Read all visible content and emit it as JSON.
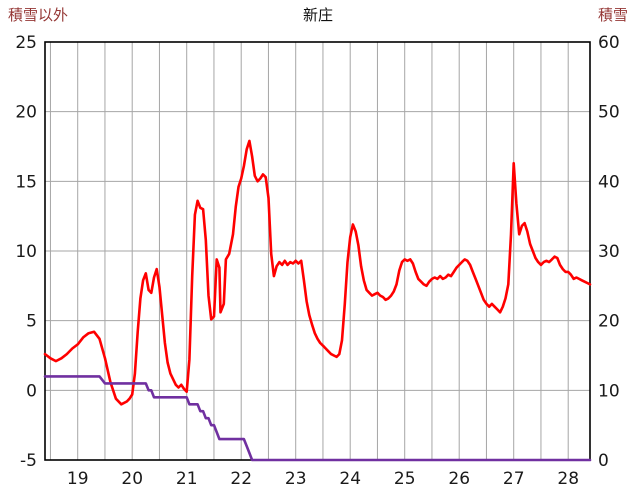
{
  "header": {
    "left_axis_title": "積雪以外",
    "title": "新庄",
    "right_axis_title": "積雪"
  },
  "colors": {
    "temp_line": "#ff0000",
    "snow_line": "#7030a0",
    "grid": "#a6a6a6",
    "border": "#000000",
    "tick_label": "#1a1a1a",
    "axis_title": "#953735",
    "background": "#ffffff"
  },
  "chart_data": {
    "type": "line",
    "title": "新庄",
    "x_axis": {
      "range": [
        18.4,
        28.4
      ],
      "gridline_step": 0.5,
      "tick_positions": [
        19,
        20,
        21,
        22,
        23,
        24,
        25,
        26,
        27,
        28
      ],
      "tick_labels": [
        "19",
        "20",
        "21",
        "22",
        "23",
        "24",
        "25",
        "26",
        "27",
        "28"
      ]
    },
    "y_left": {
      "label": "積雪以外",
      "range": [
        -5,
        25
      ],
      "ticks": [
        -5,
        0,
        5,
        10,
        15,
        20,
        25
      ],
      "tick_labels": [
        "-5",
        "0",
        "5",
        "10",
        "15",
        "20",
        "25"
      ]
    },
    "y_right": {
      "label": "積雪",
      "range": [
        0,
        60
      ],
      "ticks": [
        0,
        10,
        20,
        30,
        40,
        50,
        60
      ],
      "tick_labels": [
        "0",
        "10",
        "20",
        "30",
        "40",
        "50",
        "60"
      ]
    },
    "grid": true,
    "legend": "none",
    "series": [
      {
        "name": "積雪以外",
        "axis": "left",
        "color": "#ff0000",
        "points": [
          [
            18.4,
            2.6
          ],
          [
            18.5,
            2.3
          ],
          [
            18.6,
            2.1
          ],
          [
            18.7,
            2.3
          ],
          [
            18.8,
            2.6
          ],
          [
            18.9,
            3.0
          ],
          [
            19.0,
            3.3
          ],
          [
            19.1,
            3.8
          ],
          [
            19.2,
            4.1
          ],
          [
            19.3,
            4.2
          ],
          [
            19.4,
            3.7
          ],
          [
            19.5,
            2.3
          ],
          [
            19.6,
            0.6
          ],
          [
            19.7,
            -0.6
          ],
          [
            19.8,
            -1.0
          ],
          [
            19.9,
            -0.8
          ],
          [
            19.95,
            -0.6
          ],
          [
            20.0,
            -0.3
          ],
          [
            20.05,
            1.2
          ],
          [
            20.1,
            4.2
          ],
          [
            20.15,
            6.6
          ],
          [
            20.2,
            7.9
          ],
          [
            20.25,
            8.4
          ],
          [
            20.3,
            7.2
          ],
          [
            20.35,
            7.0
          ],
          [
            20.4,
            8.1
          ],
          [
            20.45,
            8.7
          ],
          [
            20.5,
            7.4
          ],
          [
            20.55,
            5.4
          ],
          [
            20.6,
            3.4
          ],
          [
            20.65,
            2.0
          ],
          [
            20.7,
            1.2
          ],
          [
            20.75,
            0.8
          ],
          [
            20.8,
            0.4
          ],
          [
            20.85,
            0.2
          ],
          [
            20.9,
            0.4
          ],
          [
            20.95,
            0.1
          ],
          [
            21.0,
            -0.1
          ],
          [
            21.05,
            2.2
          ],
          [
            21.1,
            8.2
          ],
          [
            21.15,
            12.6
          ],
          [
            21.2,
            13.6
          ],
          [
            21.25,
            13.1
          ],
          [
            21.3,
            13.0
          ],
          [
            21.35,
            10.8
          ],
          [
            21.4,
            6.8
          ],
          [
            21.45,
            5.1
          ],
          [
            21.5,
            5.3
          ],
          [
            21.55,
            9.4
          ],
          [
            21.6,
            8.8
          ],
          [
            21.62,
            5.6
          ],
          [
            21.68,
            6.2
          ],
          [
            21.72,
            9.4
          ],
          [
            21.78,
            9.8
          ],
          [
            21.85,
            11.2
          ],
          [
            21.9,
            13.2
          ],
          [
            21.95,
            14.6
          ],
          [
            22.0,
            15.2
          ],
          [
            22.05,
            16.1
          ],
          [
            22.1,
            17.3
          ],
          [
            22.15,
            17.9
          ],
          [
            22.2,
            16.8
          ],
          [
            22.25,
            15.4
          ],
          [
            22.3,
            15.0
          ],
          [
            22.35,
            15.2
          ],
          [
            22.4,
            15.5
          ],
          [
            22.45,
            15.3
          ],
          [
            22.5,
            13.8
          ],
          [
            22.55,
            9.8
          ],
          [
            22.6,
            8.2
          ],
          [
            22.65,
            8.9
          ],
          [
            22.7,
            9.2
          ],
          [
            22.75,
            9.0
          ],
          [
            22.8,
            9.3
          ],
          [
            22.85,
            9.0
          ],
          [
            22.9,
            9.2
          ],
          [
            22.95,
            9.1
          ],
          [
            23.0,
            9.3
          ],
          [
            23.05,
            9.1
          ],
          [
            23.1,
            9.3
          ],
          [
            23.15,
            7.9
          ],
          [
            23.2,
            6.4
          ],
          [
            23.25,
            5.4
          ],
          [
            23.3,
            4.7
          ],
          [
            23.35,
            4.1
          ],
          [
            23.4,
            3.7
          ],
          [
            23.45,
            3.4
          ],
          [
            23.5,
            3.2
          ],
          [
            23.55,
            3.0
          ],
          [
            23.6,
            2.8
          ],
          [
            23.65,
            2.6
          ],
          [
            23.7,
            2.5
          ],
          [
            23.75,
            2.4
          ],
          [
            23.8,
            2.6
          ],
          [
            23.85,
            3.6
          ],
          [
            23.9,
            6.2
          ],
          [
            23.95,
            9.2
          ],
          [
            24.0,
            11.0
          ],
          [
            24.05,
            11.9
          ],
          [
            24.1,
            11.4
          ],
          [
            24.15,
            10.4
          ],
          [
            24.2,
            8.9
          ],
          [
            24.25,
            7.9
          ],
          [
            24.3,
            7.2
          ],
          [
            24.35,
            7.0
          ],
          [
            24.4,
            6.8
          ],
          [
            24.45,
            6.9
          ],
          [
            24.5,
            7.0
          ],
          [
            24.55,
            6.8
          ],
          [
            24.6,
            6.7
          ],
          [
            24.65,
            6.5
          ],
          [
            24.7,
            6.6
          ],
          [
            24.75,
            6.8
          ],
          [
            24.8,
            7.1
          ],
          [
            24.85,
            7.6
          ],
          [
            24.9,
            8.6
          ],
          [
            24.95,
            9.2
          ],
          [
            25.0,
            9.4
          ],
          [
            25.05,
            9.3
          ],
          [
            25.1,
            9.4
          ],
          [
            25.15,
            9.1
          ],
          [
            25.2,
            8.5
          ],
          [
            25.25,
            8.0
          ],
          [
            25.3,
            7.8
          ],
          [
            25.35,
            7.6
          ],
          [
            25.4,
            7.5
          ],
          [
            25.45,
            7.8
          ],
          [
            25.5,
            8.0
          ],
          [
            25.55,
            8.1
          ],
          [
            25.6,
            8.0
          ],
          [
            25.65,
            8.2
          ],
          [
            25.7,
            8.0
          ],
          [
            25.75,
            8.1
          ],
          [
            25.8,
            8.3
          ],
          [
            25.85,
            8.2
          ],
          [
            25.9,
            8.5
          ],
          [
            25.95,
            8.8
          ],
          [
            26.0,
            9.0
          ],
          [
            26.05,
            9.2
          ],
          [
            26.1,
            9.4
          ],
          [
            26.15,
            9.3
          ],
          [
            26.2,
            9.0
          ],
          [
            26.25,
            8.5
          ],
          [
            26.3,
            8.0
          ],
          [
            26.35,
            7.5
          ],
          [
            26.4,
            7.0
          ],
          [
            26.45,
            6.5
          ],
          [
            26.5,
            6.2
          ],
          [
            26.55,
            6.0
          ],
          [
            26.6,
            6.2
          ],
          [
            26.65,
            6.0
          ],
          [
            26.7,
            5.8
          ],
          [
            26.75,
            5.6
          ],
          [
            26.8,
            6.0
          ],
          [
            26.85,
            6.6
          ],
          [
            26.9,
            7.6
          ],
          [
            26.95,
            11.2
          ],
          [
            27.0,
            16.3
          ],
          [
            27.05,
            13.4
          ],
          [
            27.1,
            11.2
          ],
          [
            27.15,
            11.8
          ],
          [
            27.2,
            12.0
          ],
          [
            27.25,
            11.4
          ],
          [
            27.3,
            10.5
          ],
          [
            27.35,
            10.0
          ],
          [
            27.4,
            9.5
          ],
          [
            27.45,
            9.2
          ],
          [
            27.5,
            9.0
          ],
          [
            27.55,
            9.2
          ],
          [
            27.6,
            9.3
          ],
          [
            27.65,
            9.2
          ],
          [
            27.7,
            9.4
          ],
          [
            27.75,
            9.6
          ],
          [
            27.8,
            9.5
          ],
          [
            27.85,
            9.0
          ],
          [
            27.9,
            8.7
          ],
          [
            27.95,
            8.5
          ],
          [
            28.0,
            8.5
          ],
          [
            28.05,
            8.3
          ],
          [
            28.1,
            8.0
          ],
          [
            28.15,
            8.1
          ],
          [
            28.2,
            8.0
          ],
          [
            28.25,
            7.9
          ],
          [
            28.3,
            7.8
          ],
          [
            28.35,
            7.7
          ],
          [
            28.4,
            7.6
          ]
        ]
      },
      {
        "name": "積雪",
        "axis": "right",
        "color": "#7030a0",
        "points": [
          [
            18.4,
            12
          ],
          [
            19.4,
            12
          ],
          [
            19.5,
            11
          ],
          [
            20.25,
            11
          ],
          [
            20.3,
            10
          ],
          [
            20.35,
            10
          ],
          [
            20.4,
            9
          ],
          [
            21.0,
            9
          ],
          [
            21.05,
            8
          ],
          [
            21.2,
            8
          ],
          [
            21.25,
            7
          ],
          [
            21.3,
            7
          ],
          [
            21.35,
            6
          ],
          [
            21.4,
            6
          ],
          [
            21.45,
            5
          ],
          [
            21.5,
            5
          ],
          [
            21.55,
            4
          ],
          [
            21.6,
            3
          ],
          [
            22.05,
            3
          ],
          [
            22.1,
            2
          ],
          [
            22.15,
            1
          ],
          [
            22.2,
            0
          ],
          [
            28.4,
            0
          ]
        ]
      }
    ]
  }
}
